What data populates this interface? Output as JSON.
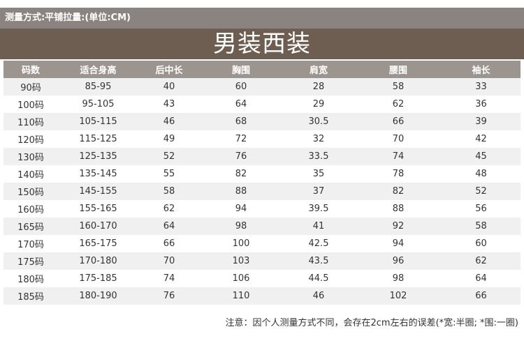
{
  "measure_note": "测量方式:平铺拉量:(单位:CM)",
  "title": "男装西装",
  "headers": [
    "码数",
    "适合身高",
    "后中长",
    "胸围",
    "肩宽",
    "腰围",
    "袖长"
  ],
  "rows": [
    [
      "90码",
      "85-95",
      "40",
      "60",
      "28",
      "58",
      "33"
    ],
    [
      "100码",
      "95-105",
      "43",
      "64",
      "29",
      "62",
      "36"
    ],
    [
      "110码",
      "105-115",
      "46",
      "68",
      "30.5",
      "66",
      "39"
    ],
    [
      "120码",
      "115-125",
      "49",
      "72",
      "32",
      "70",
      "42"
    ],
    [
      "130码",
      "125-135",
      "52",
      "76",
      "33.5",
      "74",
      "45"
    ],
    [
      "140码",
      "135-145",
      "55",
      "82",
      "35",
      "78",
      "48"
    ],
    [
      "150码",
      "145-155",
      "58",
      "88",
      "37",
      "82",
      "52"
    ],
    [
      "160码",
      "155-165",
      "62",
      "94",
      "39.5",
      "88",
      "56"
    ],
    [
      "165码",
      "160-170",
      "64",
      "98",
      "41",
      "92",
      "58"
    ],
    [
      "170码",
      "165-175",
      "66",
      "100",
      "42.5",
      "94",
      "60"
    ],
    [
      "175码",
      "170-180",
      "70",
      "103",
      "43.5",
      "96",
      "62"
    ],
    [
      "180码",
      "175-185",
      "74",
      "106",
      "44.5",
      "98",
      "64"
    ],
    [
      "185码",
      "180-190",
      "76",
      "110",
      "46",
      "102",
      "66"
    ]
  ],
  "footnote": "注意：因个人测量方式不同，会存在2cm左右的误差(*宽:半圈; *围:一圈)",
  "colors": {
    "measure_bar": "#8a8380",
    "title_bar": "#6e5e51",
    "header_row": "#9c948f",
    "row_alt": "#f0f0f0"
  }
}
